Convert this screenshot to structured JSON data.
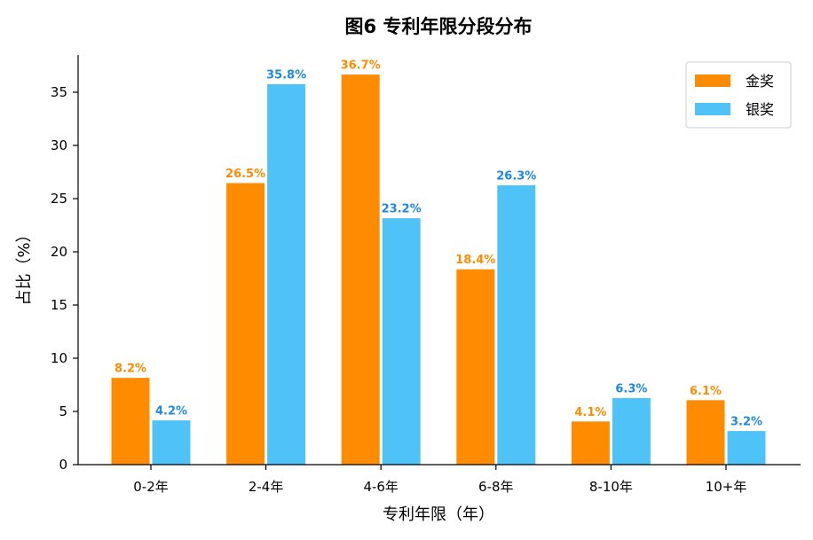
{
  "chart_data": {
    "type": "bar",
    "title": "图6  专利年限分段分布",
    "xlabel": "专利年限（年）",
    "ylabel": "占比（%）",
    "categories": [
      "0-2年",
      "2-4年",
      "4-6年",
      "6-8年",
      "8-10年",
      "10+年"
    ],
    "series": [
      {
        "name": "金奖",
        "values": [
          8.2,
          26.5,
          36.7,
          18.4,
          4.1,
          6.1
        ],
        "labels": [
          "8.2%",
          "26.5%",
          "36.7%",
          "18.4%",
          "4.1%",
          "6.1%"
        ],
        "color": "#FF8C00",
        "label_color": "#FF8C00"
      },
      {
        "name": "银奖",
        "values": [
          4.2,
          35.8,
          23.2,
          26.3,
          6.3,
          3.2
        ],
        "labels": [
          "4.2%",
          "35.8%",
          "23.2%",
          "26.3%",
          "6.3%",
          "3.2%"
        ],
        "color": "#4FC3F7",
        "label_color": "#1E88E5"
      }
    ],
    "ylim": [
      0,
      38.5
    ],
    "yticks": [
      0,
      5,
      10,
      15,
      20,
      25,
      30,
      35
    ],
    "grid": false,
    "legend_position": "top-right"
  }
}
